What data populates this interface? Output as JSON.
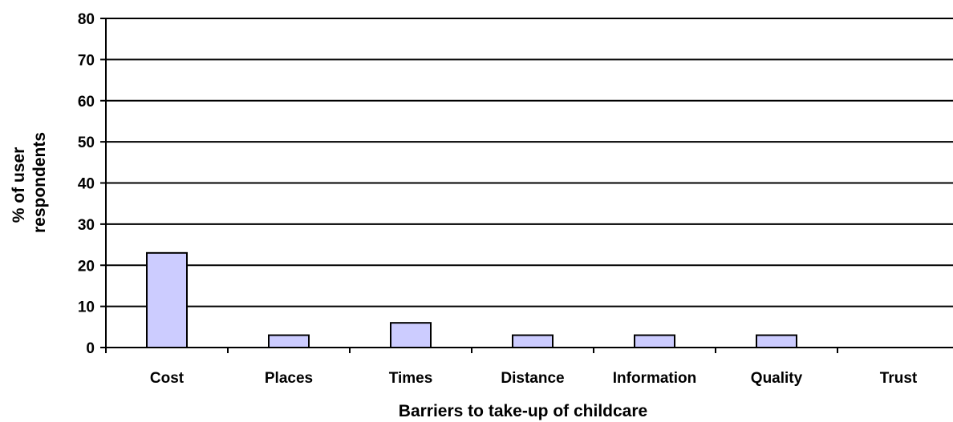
{
  "chart_data": {
    "type": "bar",
    "categories": [
      "Cost",
      "Places",
      "Times",
      "Distance",
      "Information",
      "Quality",
      "Trust"
    ],
    "values": [
      23,
      3,
      6,
      3,
      3,
      3,
      0
    ],
    "xlabel": "Barriers to take-up of childcare",
    "ylabel_lines": [
      "% of user",
      "respondents"
    ],
    "ylim": [
      0,
      80
    ],
    "yticks": [
      0,
      10,
      20,
      30,
      40,
      50,
      60,
      70,
      80
    ],
    "grid": true,
    "bar_color": "#ccccff",
    "bar_edge_color": "#000000"
  }
}
